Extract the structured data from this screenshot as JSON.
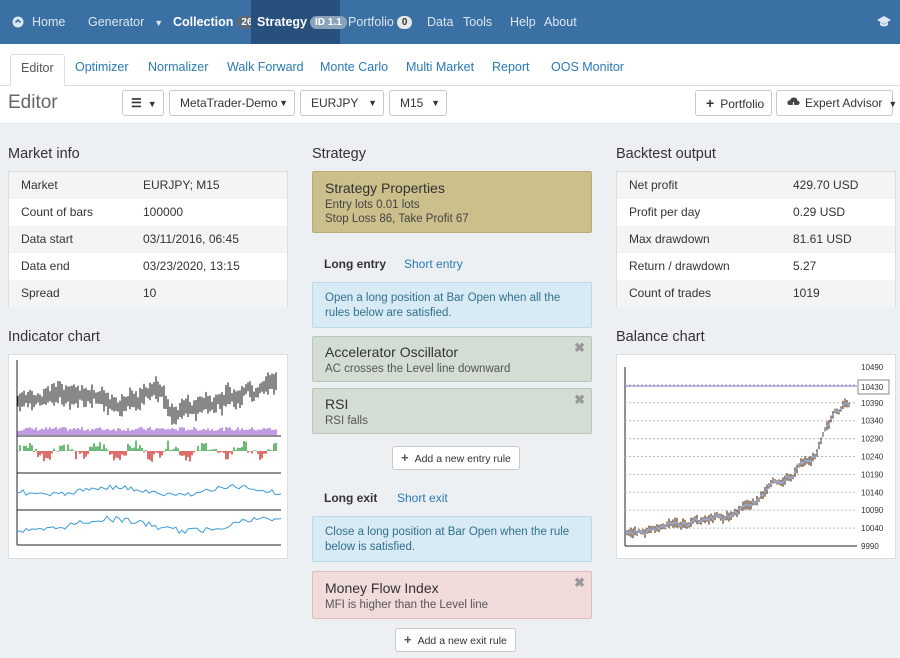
{
  "nav": {
    "home": "Home",
    "generator": "Generator",
    "collection": "Collection",
    "collection_count": "26",
    "strategy": "Strategy",
    "strategy_id": "ID 1.1",
    "portfolio": "Portfolio",
    "portfolio_count": "0",
    "data": "Data",
    "tools": "Tools",
    "help": "Help",
    "about": "About"
  },
  "tabs": [
    "Editor",
    "Optimizer",
    "Normalizer",
    "Walk Forward",
    "Monte Carlo",
    "Multi Market",
    "Report",
    "OOS Monitor"
  ],
  "toolbar": {
    "title": "Editor",
    "server": "MetaTrader-Demo",
    "symbol": "EURJPY",
    "period": "M15",
    "portfolio_label": "Portfolio",
    "ea_label": "Expert Advisor"
  },
  "market_info": {
    "title": "Market info",
    "rows": [
      {
        "k": "Market",
        "v": "EURJPY; M15"
      },
      {
        "k": "Count of bars",
        "v": "100000"
      },
      {
        "k": "Data start",
        "v": "03/11/2016, 06:45"
      },
      {
        "k": "Data end",
        "v": "03/23/2020, 13:15"
      },
      {
        "k": "Spread",
        "v": "10"
      }
    ]
  },
  "indicator_chart": {
    "title": "Indicator chart"
  },
  "strategy": {
    "title": "Strategy",
    "props_title": "Strategy Properties",
    "props_line1": "Entry lots 0.01 lots",
    "props_line2": "Stop Loss 86, Take Profit 67",
    "long_entry": "Long entry",
    "short_entry": "Short entry",
    "entry_info": "Open a long position at Bar Open when all the rules below are satisfied.",
    "entry_rules": [
      {
        "title": "Accelerator Oscillator",
        "desc": "AC crosses the Level line downward"
      },
      {
        "title": "RSI",
        "desc": "RSI falls"
      }
    ],
    "add_entry": "Add a new entry rule",
    "long_exit": "Long exit",
    "short_exit": "Short exit",
    "exit_info": "Close a long position at Bar Open when the rule below is satisfied.",
    "exit_rules": [
      {
        "title": "Money Flow Index",
        "desc": "MFI is higher than the Level line"
      }
    ],
    "add_exit": "Add a new exit rule"
  },
  "backtest": {
    "title": "Backtest output",
    "rows": [
      {
        "k": "Net profit",
        "v": "429.70 USD"
      },
      {
        "k": "Profit per day",
        "v": "0.29 USD"
      },
      {
        "k": "Max drawdown",
        "v": "81.61 USD"
      },
      {
        "k": "Return / drawdown",
        "v": "5.27"
      },
      {
        "k": "Count of trades",
        "v": "1019"
      }
    ]
  },
  "balance_chart": {
    "title": "Balance chart",
    "y_ticks": [
      "10490",
      "10430",
      "10390",
      "10340",
      "10290",
      "10240",
      "10190",
      "10140",
      "10090",
      "10040",
      "9990"
    ],
    "current_value": "10430"
  },
  "colors": {
    "nav": "#3a70a3",
    "accent": "#2a7ab5",
    "up": "#2e9e3e",
    "down": "#d0302a",
    "volume": "#a56fd6",
    "line": "#3b9ad9"
  }
}
